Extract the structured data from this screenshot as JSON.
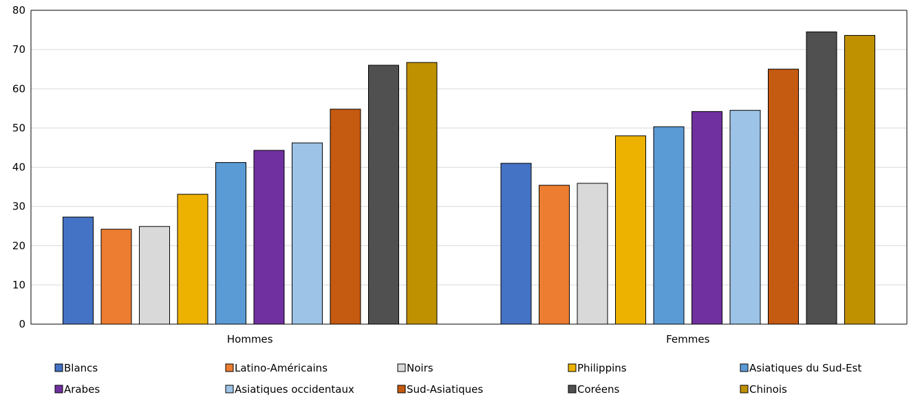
{
  "chart_data": {
    "type": "bar",
    "categories": [
      "Hommes",
      "Femmes"
    ],
    "ylim": [
      0,
      80
    ],
    "yticks": [
      0,
      10,
      20,
      30,
      40,
      50,
      60,
      70,
      80
    ],
    "grid": true,
    "legend_position": "bottom",
    "series": [
      {
        "name": "Blancs",
        "color": "#4472C4",
        "values": [
          27.3,
          41.0
        ]
      },
      {
        "name": "Latino-Américains",
        "color": "#ED7D31",
        "values": [
          24.2,
          35.4
        ]
      },
      {
        "name": "Noirs",
        "color": "#D9D9D9",
        "values": [
          24.9,
          35.9
        ]
      },
      {
        "name": "Philippins",
        "color": "#EDB200",
        "values": [
          33.1,
          48.0
        ]
      },
      {
        "name": "Asiatiques du Sud-Est",
        "color": "#5B9BD5",
        "values": [
          41.2,
          50.3
        ]
      },
      {
        "name": "Arabes",
        "color": "#7030A0",
        "values": [
          44.3,
          54.2
        ]
      },
      {
        "name": "Asiatiques occidentaux",
        "color": "#9DC3E6",
        "values": [
          46.2,
          54.5
        ]
      },
      {
        "name": "Sud-Asiatiques",
        "color": "#C55A11",
        "values": [
          54.8,
          65.0
        ]
      },
      {
        "name": "Coréens",
        "color": "#505050",
        "values": [
          66.0,
          74.5
        ]
      },
      {
        "name": "Chinois",
        "color": "#BF9000",
        "values": [
          66.7,
          73.6
        ]
      }
    ]
  }
}
